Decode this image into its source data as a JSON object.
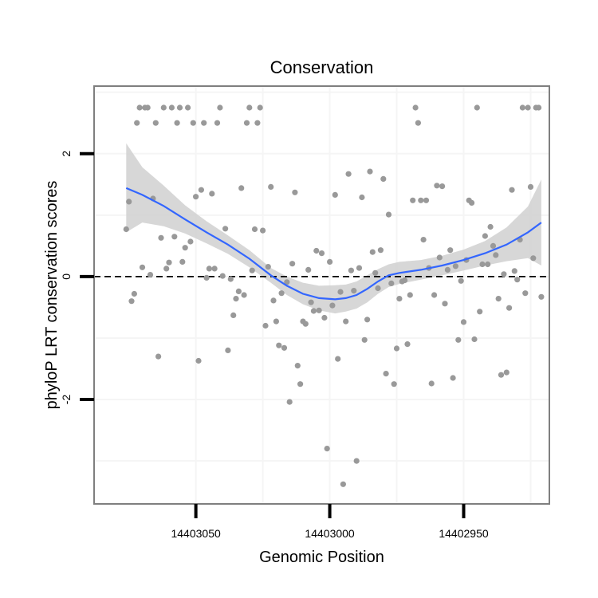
{
  "chart_data": {
    "type": "scatter",
    "title": "Conservation",
    "xlabel": "Genomic Position",
    "ylabel": "phyloP LRT conservation scores",
    "x_reversed": true,
    "xlim": [
      14403088,
      14402918
    ],
    "ylim": [
      -3.7,
      3.1
    ],
    "x_ticks": [
      14403050,
      14403000,
      14402950
    ],
    "x_tick_labels": [
      "14403050",
      "14403000",
      "14402950"
    ],
    "y_ticks": [
      2,
      0,
      -2
    ],
    "y_tick_labels": [
      "2",
      "0",
      "-2"
    ],
    "grid": true,
    "reference_line": {
      "y": 0,
      "style": "dashed",
      "color": "#000000"
    },
    "colors": {
      "points": "#999999",
      "smooth_line": "#3366ff",
      "confidence_band": "#d3d3d3",
      "panel_border": "#7f7f7f",
      "grid": "#f5f5f5"
    },
    "points": [
      [
        14403076,
        0.77
      ],
      [
        14403075,
        1.22
      ],
      [
        14403074,
        -0.4
      ],
      [
        14403073,
        -0.28
      ],
      [
        14403072,
        2.5
      ],
      [
        14403071,
        2.75
      ],
      [
        14403070,
        0.15
      ],
      [
        14403069,
        2.75
      ],
      [
        14403068,
        2.75
      ],
      [
        14403067,
        0.03
      ],
      [
        14403066,
        1.27
      ],
      [
        14403065,
        2.5
      ],
      [
        14403064,
        -1.3
      ],
      [
        14403063,
        0.63
      ],
      [
        14403062,
        2.75
      ],
      [
        14403061,
        0.13
      ],
      [
        14403060,
        0.23
      ],
      [
        14403059,
        2.75
      ],
      [
        14403058,
        0.65
      ],
      [
        14403057,
        2.5
      ],
      [
        14403056,
        2.75
      ],
      [
        14403055,
        0.24
      ],
      [
        14403054,
        0.47
      ],
      [
        14403053,
        2.75
      ],
      [
        14403052,
        0.57
      ],
      [
        14403051,
        2.5
      ],
      [
        14403050,
        1.3
      ],
      [
        14403049,
        -1.37
      ],
      [
        14403048,
        1.41
      ],
      [
        14403047,
        2.5
      ],
      [
        14403046,
        -0.02
      ],
      [
        14403045,
        0.13
      ],
      [
        14403044,
        1.35
      ],
      [
        14403043,
        0.13
      ],
      [
        14403042,
        2.5
      ],
      [
        14403041,
        2.75
      ],
      [
        14403040,
        0.01
      ],
      [
        14403039,
        0.78
      ],
      [
        14403038,
        -1.2
      ],
      [
        14403037,
        -0.04
      ],
      [
        14403036,
        -0.63
      ],
      [
        14403035,
        -0.36
      ],
      [
        14403034,
        -0.24
      ],
      [
        14403033,
        1.44
      ],
      [
        14403032,
        -0.3
      ],
      [
        14403031,
        2.5
      ],
      [
        14403030,
        2.75
      ],
      [
        14403029,
        0.1
      ],
      [
        14403028,
        0.77
      ],
      [
        14403027,
        2.5
      ],
      [
        14403026,
        2.75
      ],
      [
        14403025,
        0.75
      ],
      [
        14403024,
        -0.8
      ],
      [
        14403023,
        0.16
      ],
      [
        14403022,
        1.46
      ],
      [
        14403021,
        -0.39
      ],
      [
        14403020,
        -0.73
      ],
      [
        14403019,
        -1.12
      ],
      [
        14403018,
        -0.27
      ],
      [
        14403017,
        -1.16
      ],
      [
        14403016,
        -0.09
      ],
      [
        14403015,
        -2.04
      ],
      [
        14403014,
        0.21
      ],
      [
        14403013,
        1.37
      ],
      [
        14403012,
        -1.45
      ],
      [
        14403011,
        -1.75
      ],
      [
        14403010,
        -0.73
      ],
      [
        14403009,
        -0.77
      ],
      [
        14403008,
        0.11
      ],
      [
        14403007,
        -0.42
      ],
      [
        14403006,
        -0.56
      ],
      [
        14403005,
        0.42
      ],
      [
        14403004,
        -0.55
      ],
      [
        14403003,
        0.38
      ],
      [
        14403002,
        -0.67
      ],
      [
        14403001,
        -2.8
      ],
      [
        14403000,
        0.24
      ],
      [
        14402999,
        -0.47
      ],
      [
        14402998,
        1.33
      ],
      [
        14402997,
        -1.34
      ],
      [
        14402996,
        -0.25
      ],
      [
        14402995,
        -3.38
      ],
      [
        14402994,
        -0.73
      ],
      [
        14402993,
        1.67
      ],
      [
        14402992,
        0.1
      ],
      [
        14402991,
        -0.23
      ],
      [
        14402990,
        -3.0
      ],
      [
        14402989,
        0.14
      ],
      [
        14402988,
        1.29
      ],
      [
        14402987,
        -1.03
      ],
      [
        14402986,
        -0.7
      ],
      [
        14402985,
        1.71
      ],
      [
        14402984,
        0.4
      ],
      [
        14402983,
        0.06
      ],
      [
        14402982,
        -0.19
      ],
      [
        14402981,
        0.43
      ],
      [
        14402980,
        1.59
      ],
      [
        14402979,
        -1.58
      ],
      [
        14402978,
        1.01
      ],
      [
        14402977,
        -0.11
      ],
      [
        14402976,
        -1.75
      ],
      [
        14402975,
        -1.17
      ],
      [
        14402974,
        -0.36
      ],
      [
        14402973,
        -0.08
      ],
      [
        14402972,
        -0.06
      ],
      [
        14402971,
        -1.1
      ],
      [
        14402970,
        -0.3
      ],
      [
        14402969,
        1.24
      ],
      [
        14402968,
        2.75
      ],
      [
        14402967,
        2.5
      ],
      [
        14402966,
        1.24
      ],
      [
        14402965,
        0.6
      ],
      [
        14402964,
        1.24
      ],
      [
        14402963,
        0.14
      ],
      [
        14402962,
        -1.74
      ],
      [
        14402961,
        -0.3
      ],
      [
        14402960,
        1.48
      ],
      [
        14402959,
        0.31
      ],
      [
        14402958,
        1.47
      ],
      [
        14402957,
        -0.44
      ],
      [
        14402956,
        0.11
      ],
      [
        14402955,
        0.43
      ],
      [
        14402954,
        -1.65
      ],
      [
        14402953,
        0.17
      ],
      [
        14402952,
        -1.03
      ],
      [
        14402951,
        -0.07
      ],
      [
        14402950,
        -0.74
      ],
      [
        14402949,
        0.27
      ],
      [
        14402948,
        1.24
      ],
      [
        14402947,
        1.2
      ],
      [
        14402946,
        -1.02
      ],
      [
        14402945,
        2.75
      ],
      [
        14402944,
        -0.57
      ],
      [
        14402943,
        0.2
      ],
      [
        14402942,
        0.66
      ],
      [
        14402941,
        0.2
      ],
      [
        14402940,
        0.81
      ],
      [
        14402939,
        0.5
      ],
      [
        14402938,
        0.35
      ],
      [
        14402937,
        -0.36
      ],
      [
        14402936,
        -1.6
      ],
      [
        14402935,
        0.04
      ],
      [
        14402934,
        -1.56
      ],
      [
        14402933,
        -0.51
      ],
      [
        14402932,
        1.41
      ],
      [
        14402931,
        0.09
      ],
      [
        14402930,
        -0.05
      ],
      [
        14402929,
        0.6
      ],
      [
        14402928,
        2.75
      ],
      [
        14402927,
        -0.27
      ],
      [
        14402926,
        2.75
      ],
      [
        14402925,
        1.46
      ],
      [
        14402924,
        0.3
      ],
      [
        14402923,
        2.75
      ],
      [
        14402922,
        2.75
      ],
      [
        14402921,
        -0.33
      ]
    ],
    "smooth": {
      "x": [
        14403076,
        14403070,
        14403062,
        14403054,
        14403046,
        14403038,
        14403030,
        14403022,
        14403016,
        14403010,
        14403004,
        14402998,
        14402994,
        14402990,
        14402986,
        14402982,
        14402978,
        14402974,
        14402966,
        14402958,
        14402950,
        14402942,
        14402934,
        14402926,
        14402921
      ],
      "y": [
        1.44,
        1.33,
        1.15,
        0.93,
        0.72,
        0.52,
        0.29,
        0.02,
        -0.15,
        -0.28,
        -0.35,
        -0.37,
        -0.35,
        -0.3,
        -0.2,
        -0.08,
        0.02,
        0.06,
        0.11,
        0.18,
        0.27,
        0.38,
        0.52,
        0.72,
        0.88
      ],
      "lower": [
        0.72,
        0.88,
        0.82,
        0.7,
        0.54,
        0.37,
        0.15,
        -0.1,
        -0.3,
        -0.45,
        -0.55,
        -0.6,
        -0.57,
        -0.52,
        -0.42,
        -0.28,
        -0.17,
        -0.12,
        -0.05,
        0.02,
        0.1,
        0.18,
        0.25,
        0.3,
        0.18
      ],
      "upper": [
        2.17,
        1.78,
        1.48,
        1.16,
        0.9,
        0.67,
        0.43,
        0.14,
        0.0,
        -0.1,
        -0.15,
        -0.14,
        -0.13,
        -0.08,
        0.02,
        0.12,
        0.2,
        0.24,
        0.27,
        0.34,
        0.44,
        0.58,
        0.8,
        1.14,
        1.58
      ]
    }
  }
}
